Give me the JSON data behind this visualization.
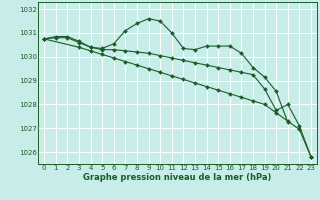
{
  "title": "Graphe pression niveau de la mer (hPa)",
  "bg_color": "#c8ece8",
  "grid_color": "#ffffff",
  "line_color": "#1a5c28",
  "ylim": [
    1025.5,
    1032.3
  ],
  "xlim": [
    -0.5,
    23.5
  ],
  "yticks": [
    1026,
    1027,
    1028,
    1029,
    1030,
    1031,
    1032
  ],
  "xticks": [
    0,
    1,
    2,
    3,
    4,
    5,
    6,
    7,
    8,
    9,
    10,
    11,
    12,
    13,
    14,
    15,
    16,
    17,
    18,
    19,
    20,
    21,
    22,
    23
  ],
  "s1_x": [
    0,
    1,
    2,
    3,
    4,
    5,
    6,
    7,
    8,
    9,
    10,
    11,
    12,
    13,
    14,
    15,
    16,
    17,
    18,
    19,
    20,
    21
  ],
  "s1_y": [
    1030.75,
    1030.85,
    1030.85,
    1030.65,
    1030.4,
    1030.35,
    1030.55,
    1031.1,
    1031.4,
    1031.6,
    1031.5,
    1031.0,
    1030.35,
    1030.3,
    1030.45,
    1030.45,
    1030.45,
    1030.15,
    1029.55,
    1029.15,
    1028.55,
    1027.25
  ],
  "s2_x": [
    0,
    1,
    2,
    3,
    4,
    5,
    6,
    7,
    8,
    9,
    10,
    11,
    12,
    13,
    14,
    15,
    16,
    17,
    18,
    19,
    20,
    21,
    22,
    23
  ],
  "s2_y": [
    1030.75,
    1030.8,
    1030.8,
    1030.6,
    1030.4,
    1030.3,
    1030.3,
    1030.25,
    1030.2,
    1030.15,
    1030.05,
    1029.95,
    1029.85,
    1029.75,
    1029.65,
    1029.55,
    1029.45,
    1029.35,
    1029.25,
    1028.65,
    1027.75,
    1028.0,
    1027.1,
    1025.8
  ],
  "s3_x": [
    0,
    3,
    4,
    5,
    6,
    7,
    8,
    9,
    10,
    11,
    12,
    13,
    14,
    15,
    16,
    17,
    18,
    19,
    20,
    21,
    22,
    23
  ],
  "s3_y": [
    1030.75,
    1030.4,
    1030.25,
    1030.1,
    1029.95,
    1029.8,
    1029.65,
    1029.5,
    1029.35,
    1029.2,
    1029.05,
    1028.9,
    1028.75,
    1028.6,
    1028.45,
    1028.3,
    1028.15,
    1028.0,
    1027.65,
    1027.3,
    1026.95,
    1025.8
  ]
}
